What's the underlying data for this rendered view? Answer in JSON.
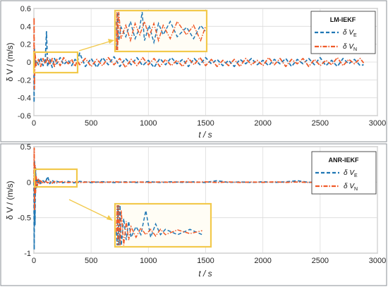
{
  "colors": {
    "series_E": "#1f77b4",
    "series_N": "#f05a28",
    "zoom_highlight": "#f2c94c"
  },
  "chart_data": [
    {
      "type": "line",
      "legend_title": "LM-IEKF",
      "legend_position": "top-right",
      "xlabel": "t / s",
      "ylabel": "δ V / (m/s)",
      "xlim": [
        0,
        3000
      ],
      "ylim": [
        -0.6,
        0.6
      ],
      "xticks": [
        "0",
        "500",
        "1000",
        "1500",
        "2000",
        "2500",
        "3000"
      ],
      "yticks": [
        "-0.6",
        "-0.4",
        "-0.2",
        "0",
        "0.2",
        "0.4",
        "0.6"
      ],
      "grid": true,
      "zoom_window": {
        "t_range": [
          0,
          380
        ],
        "v_range": [
          -0.1,
          0.1
        ]
      },
      "series": [
        {
          "name": "δ V_E",
          "legend_base": "δ V",
          "legend_sub": "E",
          "style": "dashed",
          "color": "#1f77b4",
          "x": [
            0,
            2,
            5,
            10,
            20,
            40,
            60,
            80,
            100,
            110,
            120,
            140,
            160,
            180,
            200,
            230,
            260,
            300,
            330,
            360,
            380,
            400,
            450,
            500,
            550,
            600,
            650,
            700,
            750,
            800,
            850,
            900,
            950,
            1000,
            1050,
            1100,
            1150,
            1200,
            1250,
            1300,
            1350,
            1400,
            1450,
            1500,
            1550,
            1600,
            1650,
            1700,
            1750,
            1800,
            1850,
            1900,
            1950,
            2000,
            2050,
            2100,
            2150,
            2200,
            2250,
            2300,
            2350,
            2400,
            2450,
            2500,
            2550,
            2600,
            2650,
            2700,
            2750,
            2800,
            2850,
            2880
          ],
          "values": [
            0.05,
            -0.45,
            0.15,
            -0.05,
            0.02,
            -0.03,
            0.05,
            -0.04,
            0.02,
            0.34,
            -0.05,
            0.03,
            -0.06,
            0.04,
            -0.02,
            0.05,
            -0.03,
            0.02,
            -0.04,
            0.03,
            0.0,
            0.1,
            -0.05,
            0.04,
            -0.06,
            0.05,
            -0.03,
            0.06,
            -0.05,
            0.04,
            -0.03,
            0.05,
            -0.04,
            0.02,
            -0.06,
            0.04,
            -0.03,
            0.05,
            -0.02,
            0.03,
            -0.05,
            0.04,
            -0.03,
            0.05,
            -0.02,
            0.03,
            -0.04,
            0.02,
            -0.05,
            0.03,
            -0.02,
            0.04,
            -0.03,
            0.02,
            -0.04,
            0.03,
            -0.02,
            0.04,
            -0.05,
            0.03,
            -0.02,
            0.04,
            -0.03,
            0.05,
            -0.04,
            0.02,
            -0.05,
            0.04,
            -0.02,
            0.03,
            -0.04,
            -0.03
          ]
        },
        {
          "name": "δ V_N",
          "legend_base": "δ V",
          "legend_sub": "N",
          "style": "dash-dot",
          "color": "#f05a28",
          "x": [
            0,
            2,
            5,
            10,
            20,
            40,
            60,
            80,
            100,
            120,
            140,
            160,
            180,
            200,
            230,
            260,
            300,
            330,
            360,
            380,
            400,
            450,
            500,
            550,
            600,
            650,
            700,
            750,
            800,
            850,
            900,
            950,
            1000,
            1050,
            1100,
            1150,
            1200,
            1250,
            1300,
            1350,
            1400,
            1450,
            1500,
            1550,
            1600,
            1650,
            1700,
            1750,
            1800,
            1850,
            1900,
            1950,
            2000,
            2050,
            2100,
            2150,
            2200,
            2250,
            2300,
            2350,
            2400,
            2450,
            2500,
            2550,
            2600,
            2650,
            2700,
            2750,
            2800,
            2850,
            2880
          ],
          "values": [
            -0.1,
            0.5,
            -0.3,
            0.1,
            -0.04,
            0.03,
            -0.05,
            0.04,
            -0.02,
            0.05,
            -0.03,
            0.04,
            -0.05,
            0.03,
            -0.04,
            0.05,
            -0.02,
            0.03,
            -0.05,
            0.02,
            -0.03,
            0.04,
            -0.05,
            0.03,
            -0.04,
            0.05,
            -0.03,
            0.04,
            -0.06,
            0.03,
            -0.04,
            0.05,
            -0.03,
            0.04,
            -0.05,
            0.03,
            -0.04,
            0.02,
            -0.05,
            0.04,
            -0.03,
            0.05,
            -0.04,
            0.03,
            -0.05,
            0.02,
            -0.04,
            0.03,
            -0.05,
            0.04,
            -0.03,
            0.02,
            -0.04,
            0.05,
            -0.03,
            0.04,
            -0.05,
            0.03,
            -0.02,
            0.04,
            -0.05,
            0.03,
            -0.04,
            0.02,
            -0.03,
            0.05,
            -0.04,
            0.03,
            -0.02,
            0.04,
            -0.01
          ]
        }
      ]
    },
    {
      "type": "line",
      "legend_title": "ANR-IEKF",
      "legend_position": "top-right",
      "xlabel": "t / s",
      "ylabel": "δ V / (m/s)",
      "xlim": [
        0,
        3000
      ],
      "ylim": [
        -1,
        0.5
      ],
      "xticks": [
        "0",
        "500",
        "1000",
        "1500",
        "2000",
        "2500",
        "3000"
      ],
      "yticks": [
        "-1",
        "-0.5",
        "0",
        "0.5"
      ],
      "grid": true,
      "zoom_window": {
        "t_range": [
          0,
          380
        ],
        "v_range": [
          -0.05,
          0.1
        ]
      },
      "series": [
        {
          "name": "δ V_E",
          "legend_base": "δ V",
          "legend_sub": "E",
          "style": "dashed",
          "color": "#1f77b4",
          "x": [
            0,
            3,
            6,
            10,
            15,
            20,
            30,
            40,
            50,
            60,
            80,
            100,
            120,
            140,
            160,
            180,
            200,
            250,
            300,
            350,
            400,
            500,
            600,
            700,
            800,
            900,
            1000,
            1100,
            1200,
            1300,
            1400,
            1500,
            1600,
            1700,
            1800,
            1900,
            2000,
            2100,
            2200,
            2300,
            2400,
            2500,
            2600,
            2700,
            2800,
            2850
          ],
          "values": [
            0.0,
            -0.95,
            0.3,
            -0.6,
            0.2,
            -0.1,
            0.05,
            -0.03,
            0.04,
            -0.02,
            0.02,
            -0.01,
            0.08,
            -0.02,
            0.03,
            -0.01,
            0.01,
            -0.01,
            0.01,
            -0.01,
            0.01,
            -0.005,
            0.005,
            -0.005,
            0.004,
            -0.004,
            0.006,
            -0.004,
            0.005,
            -0.003,
            0.004,
            -0.005,
            0.02,
            -0.004,
            0.003,
            -0.004,
            0.005,
            -0.003,
            0.004,
            0.02,
            -0.003,
            0.004,
            -0.003,
            0.003,
            -0.002,
            0.0
          ]
        },
        {
          "name": "δ V_N",
          "legend_base": "δ V",
          "legend_sub": "N",
          "style": "dash-dot",
          "color": "#f05a28",
          "x": [
            0,
            3,
            6,
            10,
            15,
            20,
            30,
            40,
            50,
            60,
            80,
            100,
            120,
            140,
            160,
            180,
            200,
            250,
            300,
            350,
            400,
            500,
            600,
            700,
            800,
            900,
            1000,
            1100,
            1200,
            1300,
            1400,
            1500,
            1600,
            1700,
            1800,
            1900,
            2000,
            2100,
            2200,
            2300,
            2400,
            2500,
            2600,
            2700,
            2800,
            2850
          ],
          "values": [
            0.0,
            0.48,
            -0.4,
            0.25,
            -0.15,
            0.08,
            -0.05,
            0.04,
            -0.03,
            0.02,
            -0.02,
            0.015,
            -0.01,
            0.01,
            -0.015,
            0.01,
            -0.01,
            0.008,
            -0.006,
            0.005,
            -0.005,
            0.004,
            -0.004,
            0.005,
            -0.003,
            0.004,
            -0.005,
            0.003,
            -0.004,
            0.005,
            -0.003,
            0.004,
            -0.005,
            0.003,
            -0.004,
            0.002,
            -0.003,
            0.004,
            -0.003,
            0.002,
            -0.004,
            0.003,
            -0.002,
            0.003,
            -0.002,
            0.0
          ]
        }
      ]
    }
  ]
}
